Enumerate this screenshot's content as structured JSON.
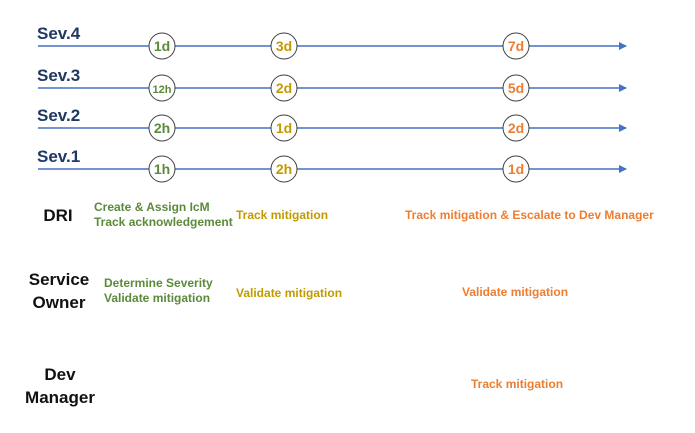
{
  "colors": {
    "axis": "#4472c4",
    "sev_label": "#1f3864",
    "phase1": "#5a8a3a",
    "phase2": "#c09a00",
    "phase3": "#ed7d31"
  },
  "severities": [
    {
      "label": "Sev.4",
      "milestones": [
        "1d",
        "3d",
        "7d"
      ]
    },
    {
      "label": "Sev.3",
      "milestones": [
        "12h",
        "2d",
        "5d"
      ]
    },
    {
      "label": "Sev.2",
      "milestones": [
        "2h",
        "1d",
        "2d"
      ]
    },
    {
      "label": "Sev.1",
      "milestones": [
        "1h",
        "2h",
        "1d"
      ]
    }
  ],
  "roles": [
    {
      "name_lines": [
        "DRI"
      ],
      "tasks": [
        [
          "Create & Assign IcM",
          "Track acknowledgement"
        ],
        [
          "Track mitigation"
        ],
        [
          "Track mitigation & Escalate to Dev Manager"
        ]
      ]
    },
    {
      "name_lines": [
        "Service",
        "Owner"
      ],
      "tasks": [
        [
          "Determine Severity",
          "Validate mitigation"
        ],
        [
          "Validate mitigation"
        ],
        [
          "Validate mitigation"
        ]
      ]
    },
    {
      "name_lines": [
        "Dev",
        "Manager"
      ],
      "tasks": [
        [],
        [],
        [
          "Track mitigation"
        ]
      ]
    }
  ]
}
